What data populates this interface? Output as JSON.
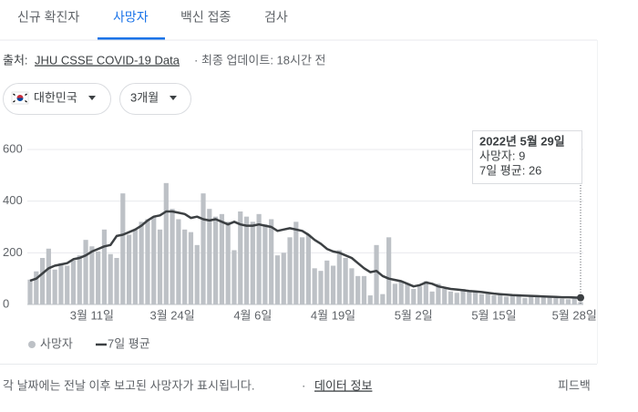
{
  "tabs": [
    "신규 확진자",
    "사망자",
    "백신 접종",
    "검사"
  ],
  "source": {
    "label": "출처:",
    "link": "JHU CSSE COVID-19 Data",
    "updated": "· 최종 업데이트: 18시간 전"
  },
  "filters": {
    "region": "대한민국",
    "period": "3개월"
  },
  "chart_data": {
    "type": "bar",
    "categories": [
      null,
      null,
      null,
      null,
      null,
      null,
      null,
      null,
      null,
      null,
      "3월 11일",
      null,
      null,
      null,
      null,
      null,
      null,
      null,
      null,
      null,
      null,
      null,
      null,
      "3월 24일",
      null,
      null,
      null,
      null,
      null,
      null,
      null,
      null,
      null,
      null,
      null,
      null,
      "4월 6일",
      null,
      null,
      null,
      null,
      null,
      null,
      null,
      null,
      null,
      null,
      null,
      null,
      "4월 19일",
      null,
      null,
      null,
      null,
      null,
      null,
      null,
      null,
      null,
      null,
      null,
      null,
      "5월 2일",
      null,
      null,
      null,
      null,
      null,
      null,
      null,
      null,
      null,
      null,
      null,
      null,
      "5월 15일",
      null,
      null,
      null,
      null,
      null,
      null,
      null,
      null,
      null,
      null,
      null,
      null,
      "5월 28일",
      null
    ],
    "series": [
      {
        "name": "사망자",
        "color": "#bdc1c6",
        "values": [
          96,
          128,
          180,
          216,
          135,
          160,
          150,
          170,
          190,
          250,
          225,
          205,
          290,
          195,
          180,
          430,
          270,
          290,
          320,
          330,
          340,
          290,
          470,
          370,
          330,
          290,
          280,
          230,
          430,
          370,
          340,
          350,
          320,
          210,
          360,
          340,
          320,
          350,
          310,
          330,
          190,
          200,
          260,
          320,
          260,
          270,
          140,
          130,
          170,
          150,
          210,
          180,
          140,
          110,
          110,
          35,
          230,
          40,
          260,
          80,
          90,
          80,
          60,
          70,
          90,
          50,
          80,
          60,
          50,
          45,
          60,
          50,
          50,
          40,
          45,
          35,
          40,
          30,
          35,
          40,
          25,
          30,
          35,
          28,
          30,
          25,
          22,
          20,
          26,
          9
        ]
      },
      {
        "name": "7일 평균",
        "color": "#3c4043",
        "type": "line",
        "values": [
          92,
          100,
          120,
          140,
          150,
          155,
          160,
          175,
          180,
          190,
          205,
          215,
          225,
          230,
          265,
          270,
          280,
          290,
          305,
          325,
          340,
          345,
          360,
          360,
          355,
          350,
          335,
          340,
          330,
          325,
          330,
          320,
          310,
          320,
          310,
          305,
          305,
          310,
          305,
          300,
          285,
          290,
          295,
          290,
          285,
          270,
          250,
          235,
          215,
          205,
          200,
          190,
          180,
          160,
          140,
          125,
          130,
          110,
          100,
          95,
          90,
          80,
          70,
          75,
          85,
          80,
          70,
          65,
          60,
          58,
          55,
          52,
          50,
          48,
          45,
          42,
          40,
          38,
          36,
          35,
          34,
          33,
          32,
          31,
          30,
          29,
          28,
          28,
          27,
          26
        ]
      }
    ],
    "ylim": [
      0,
      600
    ],
    "yticks": [
      0,
      200,
      400,
      600
    ],
    "grid": true,
    "tooltip": {
      "title": "2022년 5월 29일",
      "lines": [
        "사망자: 9",
        "7일 평균: 26"
      ]
    }
  },
  "footer": {
    "note": "각 날짜에는 전날 이후 보고된 사망자가 표시됩니다.",
    "separator": "·",
    "link": "데이터 정보",
    "feedback": "피드백"
  }
}
